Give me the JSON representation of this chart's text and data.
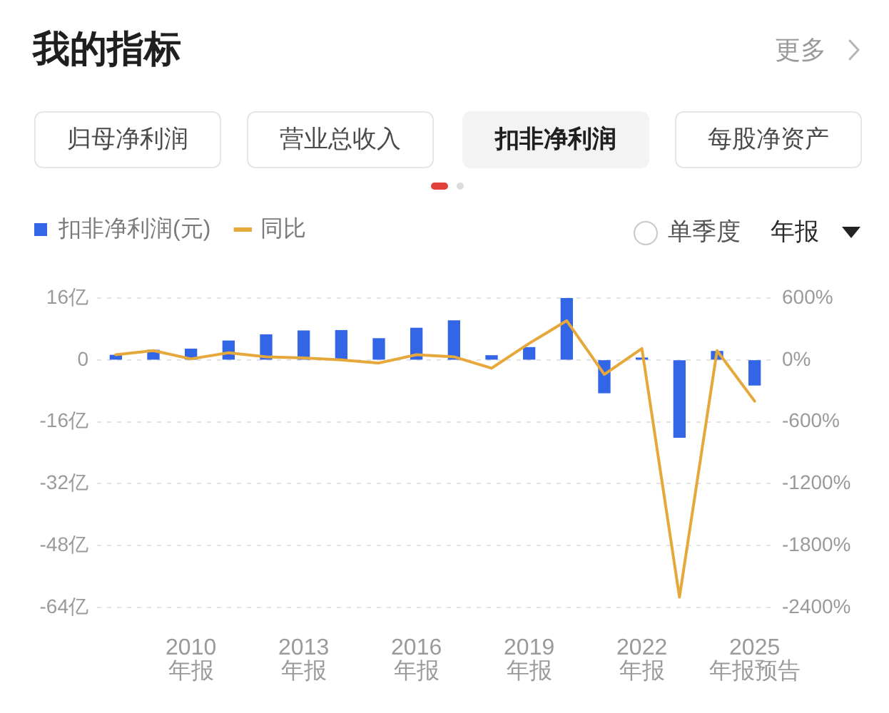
{
  "chart_data": {
    "type": "bar",
    "title": "我的指标",
    "categories": [
      null,
      null,
      "2010\n年报",
      null,
      null,
      "2013\n年报",
      null,
      null,
      "2016\n年报",
      null,
      null,
      "2019\n年报",
      null,
      null,
      "2022\n年报",
      null,
      null,
      "2025\n年报预告"
    ],
    "series": [
      {
        "name": "扣非净利润(元)",
        "color": "#3366e6",
        "values": [
          1.2,
          2.5,
          2.8,
          4.9,
          6.5,
          7.5,
          7.6,
          5.5,
          8.2,
          10.1,
          1.1,
          3.2,
          16,
          -8.5,
          0.5,
          -20,
          2.2,
          -6.5
        ]
      },
      {
        "name": "同比",
        "type": "line",
        "axis": "y2",
        "color": "#e6a83a",
        "values": [
          50,
          90,
          10,
          70,
          30,
          20,
          0,
          -30,
          50,
          30,
          -80,
          160,
          380,
          -140,
          110,
          -2300,
          90,
          -400
        ]
      }
    ],
    "ylim": [
      -64,
      16
    ],
    "yticks": [
      {
        "value": 16,
        "label": "16亿"
      },
      {
        "value": 0,
        "label": "0"
      },
      {
        "value": -16,
        "label": "-16亿"
      },
      {
        "value": -32,
        "label": "-32亿"
      },
      {
        "value": -48,
        "label": "-48亿"
      },
      {
        "value": -64,
        "label": "-64亿"
      }
    ],
    "y2lim": [
      -2400,
      600
    ],
    "y2ticks": [
      {
        "value": 600,
        "label": "600%"
      },
      {
        "value": 0,
        "label": "0%"
      },
      {
        "value": -600,
        "label": "-600%"
      },
      {
        "value": -1200,
        "label": "-1200%"
      },
      {
        "value": -1800,
        "label": "-1800%"
      },
      {
        "value": -2400,
        "label": "-2400%"
      }
    ],
    "grid": "y",
    "legend": "top left",
    "marker": "none",
    "line_style": "solid",
    "annotations": [
      "更多",
      "归母净利润",
      "营业总收入",
      "扣非净利润",
      "每股净资产",
      "单季度",
      "年报"
    ]
  }
}
